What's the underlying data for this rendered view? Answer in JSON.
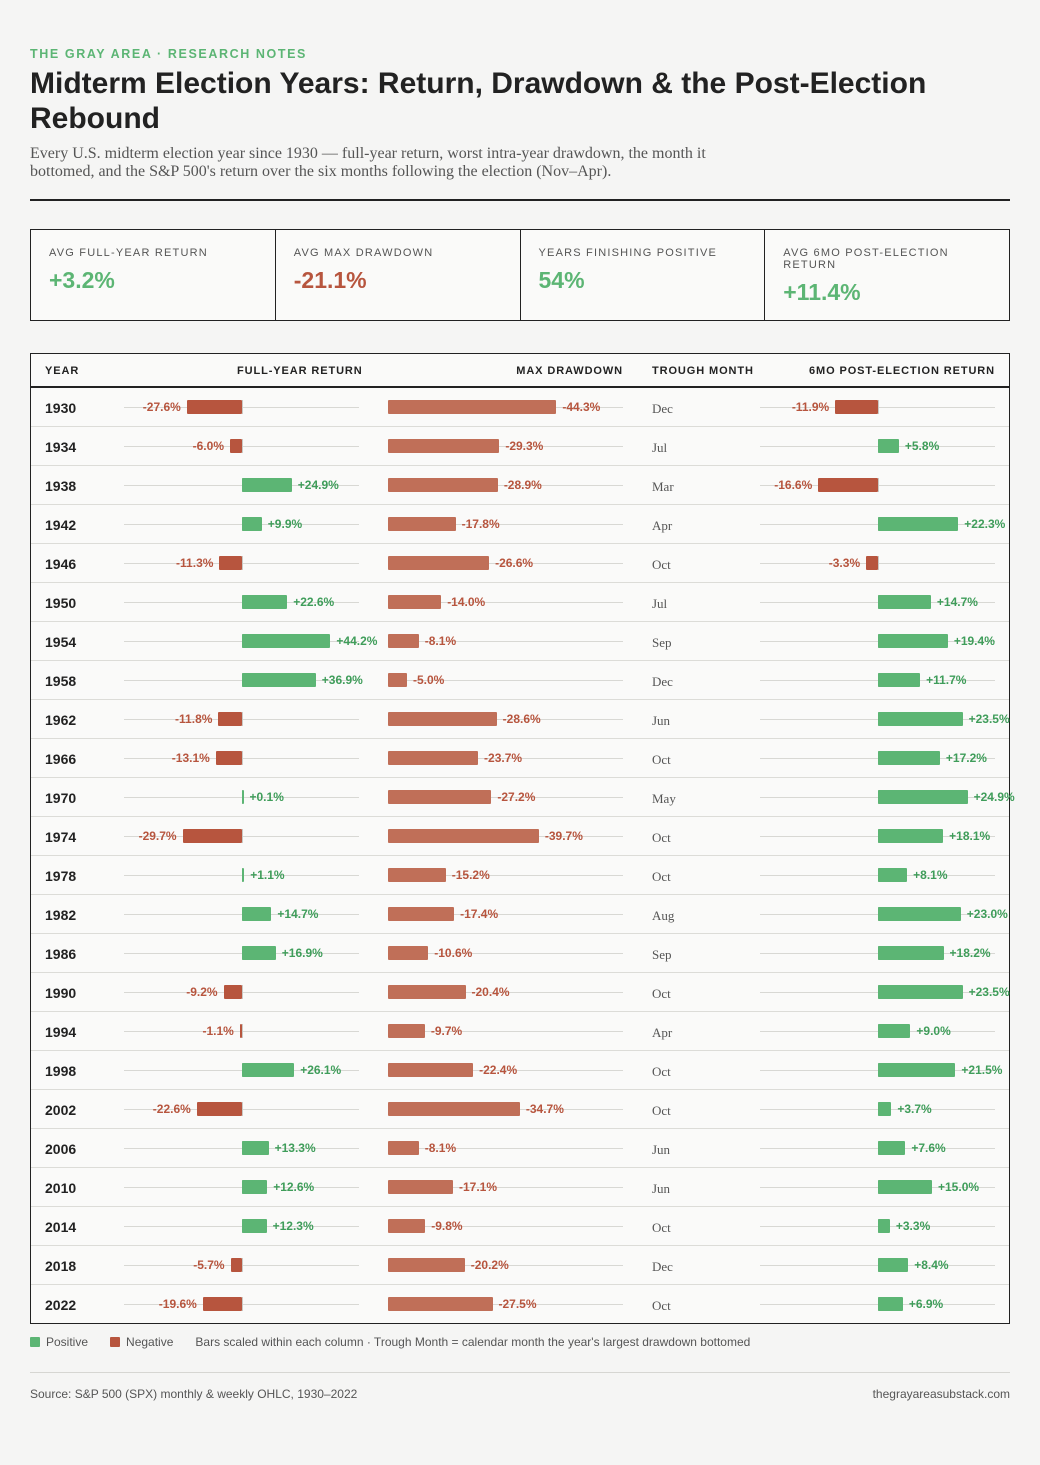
{
  "header": {
    "kicker": "THE GRAY AREA · RESEARCH NOTES",
    "title": "Midterm Election Years: Return, Drawdown & the Post-Election Rebound",
    "subtitle": "Every U.S. midterm election year since 1930 — full-year return, worst intra-year drawdown, the month it bottomed, and the S&P 500's return over the six months following the election (Nov–Apr)."
  },
  "stats": [
    {
      "label": "AVG FULL-YEAR RETURN",
      "value": "+3.2%",
      "tone": "pos"
    },
    {
      "label": "AVG MAX DRAWDOWN",
      "value": "-21.1%",
      "tone": "neg"
    },
    {
      "label": "YEARS FINISHING POSITIVE",
      "value": "54%",
      "tone": "pos"
    },
    {
      "label": "AVG 6MO POST-ELECTION RETURN",
      "value": "+11.4%",
      "tone": "pos"
    }
  ],
  "columns": {
    "year": "YEAR",
    "full_year": "FULL-YEAR RETURN",
    "drawdown": "MAX DRAWDOWN",
    "trough": "TROUGH MONTH",
    "post": "6MO POST-ELECTION RETURN"
  },
  "colors": {
    "positive": "#5cb574",
    "negative": "#b7553e",
    "drawdown": "#c06f58"
  },
  "chart_data": {
    "type": "table",
    "years": [
      1930,
      1934,
      1938,
      1942,
      1946,
      1950,
      1954,
      1958,
      1962,
      1966,
      1970,
      1974,
      1978,
      1982,
      1986,
      1990,
      1994,
      1998,
      2002,
      2006,
      2010,
      2014,
      2018,
      2022
    ],
    "full_year_return": [
      -27.6,
      -6.0,
      24.9,
      9.9,
      -11.3,
      22.6,
      44.2,
      36.9,
      -11.8,
      -13.1,
      0.1,
      -29.7,
      1.1,
      14.7,
      16.9,
      -9.2,
      -1.1,
      26.1,
      -22.6,
      13.3,
      12.6,
      12.3,
      -5.7,
      -19.6
    ],
    "max_drawdown": [
      -44.3,
      -29.3,
      -28.9,
      -17.8,
      -26.6,
      -14.0,
      -8.1,
      -5.0,
      -28.6,
      -23.7,
      -27.2,
      -39.7,
      -15.2,
      -17.4,
      -10.6,
      -20.4,
      -9.7,
      -22.4,
      -34.7,
      -8.1,
      -17.1,
      -9.8,
      -20.2,
      -27.5
    ],
    "trough_month": [
      "Dec",
      "Jul",
      "Mar",
      "Apr",
      "Oct",
      "Jul",
      "Sep",
      "Dec",
      "Jun",
      "Oct",
      "May",
      "Oct",
      "Oct",
      "Aug",
      "Sep",
      "Oct",
      "Apr",
      "Oct",
      "Oct",
      "Jun",
      "Jun",
      "Oct",
      "Dec",
      "Oct"
    ],
    "post_election_6mo": [
      -11.9,
      5.8,
      -16.6,
      22.3,
      -3.3,
      14.7,
      19.4,
      11.7,
      23.5,
      17.2,
      24.9,
      18.1,
      8.1,
      23.0,
      18.2,
      23.5,
      9.0,
      21.5,
      3.7,
      7.6,
      15.0,
      3.3,
      8.4,
      6.9
    ],
    "unit": "%"
  },
  "legend": {
    "positive": "Positive",
    "negative": "Negative",
    "note": "Bars scaled within each column · Trough Month = calendar month the year's largest drawdown bottomed"
  },
  "footer": {
    "source": "Source: S&P 500 (SPX) monthly & weekly OHLC, 1930–2022",
    "site": "thegrayareasubstack.com"
  }
}
